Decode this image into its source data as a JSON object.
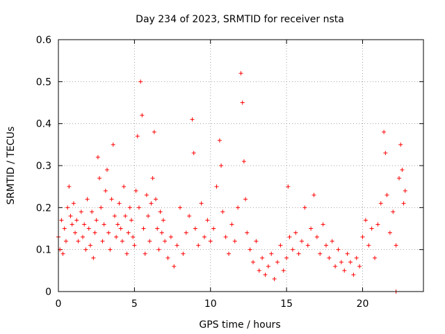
{
  "chart_data": {
    "type": "scatter",
    "title": "Day 234 of 2023, SRMTID for receiver nsta",
    "xlabel": "GPS time / hours",
    "ylabel": "SRMTID / TECUs",
    "xlim": [
      0,
      24
    ],
    "ylim": [
      0,
      0.6
    ],
    "xticks": [
      0,
      5,
      10,
      15,
      20
    ],
    "xtick_labels": [
      "0",
      "5",
      "10",
      "15",
      "20"
    ],
    "yticks": [
      0,
      0.1,
      0.2,
      0.3,
      0.4,
      0.5,
      0.6
    ],
    "ytick_labels": [
      "0",
      "0.1",
      "0.2",
      "0.3",
      "0.4",
      "0.5",
      "0.6"
    ],
    "grid": true,
    "marker": "plus",
    "color": "#ff0000",
    "series": [
      {
        "name": "SRMTID",
        "points": [
          [
            0.0,
            0.13
          ],
          [
            0.1,
            0.1
          ],
          [
            0.2,
            0.17
          ],
          [
            0.3,
            0.09
          ],
          [
            0.4,
            0.15
          ],
          [
            0.5,
            0.12
          ],
          [
            0.6,
            0.2
          ],
          [
            0.7,
            0.25
          ],
          [
            0.8,
            0.18
          ],
          [
            0.9,
            0.16
          ],
          [
            1.0,
            0.21
          ],
          [
            1.1,
            0.14
          ],
          [
            1.2,
            0.17
          ],
          [
            1.3,
            0.12
          ],
          [
            1.5,
            0.19
          ],
          [
            1.6,
            0.13
          ],
          [
            1.7,
            0.16
          ],
          [
            1.8,
            0.1
          ],
          [
            1.9,
            0.22
          ],
          [
            2.0,
            0.15
          ],
          [
            2.1,
            0.11
          ],
          [
            2.2,
            0.19
          ],
          [
            2.3,
            0.08
          ],
          [
            2.4,
            0.14
          ],
          [
            2.5,
            0.17
          ],
          [
            2.6,
            0.32
          ],
          [
            2.7,
            0.27
          ],
          [
            2.8,
            0.2
          ],
          [
            2.9,
            0.12
          ],
          [
            3.0,
            0.16
          ],
          [
            3.1,
            0.24
          ],
          [
            3.2,
            0.29
          ],
          [
            3.3,
            0.14
          ],
          [
            3.4,
            0.1
          ],
          [
            3.5,
            0.22
          ],
          [
            3.6,
            0.35
          ],
          [
            3.7,
            0.18
          ],
          [
            3.8,
            0.13
          ],
          [
            3.9,
            0.16
          ],
          [
            4.0,
            0.21
          ],
          [
            4.1,
            0.15
          ],
          [
            4.2,
            0.12
          ],
          [
            4.3,
            0.25
          ],
          [
            4.4,
            0.18
          ],
          [
            4.5,
            0.09
          ],
          [
            4.6,
            0.14
          ],
          [
            4.7,
            0.2
          ],
          [
            4.8,
            0.17
          ],
          [
            4.9,
            0.13
          ],
          [
            5.0,
            0.11
          ],
          [
            5.1,
            0.24
          ],
          [
            5.2,
            0.37
          ],
          [
            5.3,
            0.2
          ],
          [
            5.4,
            0.5
          ],
          [
            5.5,
            0.42
          ],
          [
            5.6,
            0.15
          ],
          [
            5.7,
            0.09
          ],
          [
            5.8,
            0.23
          ],
          [
            5.9,
            0.18
          ],
          [
            6.0,
            0.12
          ],
          [
            6.1,
            0.21
          ],
          [
            6.2,
            0.27
          ],
          [
            6.3,
            0.38
          ],
          [
            6.4,
            0.22
          ],
          [
            6.5,
            0.15
          ],
          [
            6.6,
            0.1
          ],
          [
            6.7,
            0.19
          ],
          [
            6.8,
            0.14
          ],
          [
            6.9,
            0.17
          ],
          [
            7.0,
            0.12
          ],
          [
            7.2,
            0.08
          ],
          [
            7.4,
            0.13
          ],
          [
            7.6,
            0.06
          ],
          [
            7.8,
            0.11
          ],
          [
            8.0,
            0.2
          ],
          [
            8.2,
            0.09
          ],
          [
            8.4,
            0.14
          ],
          [
            8.6,
            0.18
          ],
          [
            8.8,
            0.41
          ],
          [
            8.9,
            0.33
          ],
          [
            9.0,
            0.15
          ],
          [
            9.2,
            0.11
          ],
          [
            9.4,
            0.21
          ],
          [
            9.6,
            0.13
          ],
          [
            9.8,
            0.17
          ],
          [
            10.0,
            0.12
          ],
          [
            10.2,
            0.15
          ],
          [
            10.4,
            0.25
          ],
          [
            10.6,
            0.36
          ],
          [
            10.7,
            0.3
          ],
          [
            10.8,
            0.19
          ],
          [
            11.0,
            0.13
          ],
          [
            11.2,
            0.09
          ],
          [
            11.4,
            0.16
          ],
          [
            11.6,
            0.12
          ],
          [
            11.8,
            0.2
          ],
          [
            12.0,
            0.52
          ],
          [
            12.1,
            0.45
          ],
          [
            12.2,
            0.31
          ],
          [
            12.3,
            0.22
          ],
          [
            12.4,
            0.14
          ],
          [
            12.6,
            0.1
          ],
          [
            12.8,
            0.07
          ],
          [
            13.0,
            0.12
          ],
          [
            13.2,
            0.05
          ],
          [
            13.4,
            0.08
          ],
          [
            13.6,
            0.04
          ],
          [
            13.8,
            0.06
          ],
          [
            14.0,
            0.09
          ],
          [
            14.2,
            0.03
          ],
          [
            14.4,
            0.07
          ],
          [
            14.6,
            0.11
          ],
          [
            14.8,
            0.05
          ],
          [
            15.0,
            0.08
          ],
          [
            15.1,
            0.25
          ],
          [
            15.2,
            0.13
          ],
          [
            15.4,
            0.1
          ],
          [
            15.6,
            0.14
          ],
          [
            15.8,
            0.09
          ],
          [
            16.0,
            0.12
          ],
          [
            16.2,
            0.2
          ],
          [
            16.4,
            0.11
          ],
          [
            16.6,
            0.15
          ],
          [
            16.8,
            0.23
          ],
          [
            17.0,
            0.13
          ],
          [
            17.2,
            0.09
          ],
          [
            17.4,
            0.16
          ],
          [
            17.6,
            0.11
          ],
          [
            17.8,
            0.08
          ],
          [
            18.0,
            0.12
          ],
          [
            18.2,
            0.06
          ],
          [
            18.4,
            0.1
          ],
          [
            18.6,
            0.07
          ],
          [
            18.8,
            0.05
          ],
          [
            19.0,
            0.09
          ],
          [
            19.2,
            0.07
          ],
          [
            19.4,
            0.04
          ],
          [
            19.6,
            0.08
          ],
          [
            19.8,
            0.06
          ],
          [
            20.0,
            0.13
          ],
          [
            20.2,
            0.17
          ],
          [
            20.4,
            0.11
          ],
          [
            20.6,
            0.15
          ],
          [
            20.8,
            0.08
          ],
          [
            21.0,
            0.16
          ],
          [
            21.2,
            0.21
          ],
          [
            21.4,
            0.38
          ],
          [
            21.5,
            0.33
          ],
          [
            21.6,
            0.23
          ],
          [
            21.8,
            0.14
          ],
          [
            22.0,
            0.19
          ],
          [
            22.2,
            0.11
          ],
          [
            22.4,
            0.27
          ],
          [
            22.5,
            0.35
          ],
          [
            22.6,
            0.29
          ],
          [
            22.7,
            0.21
          ],
          [
            22.8,
            0.24
          ],
          [
            22.2,
            0.0
          ]
        ]
      }
    ]
  }
}
